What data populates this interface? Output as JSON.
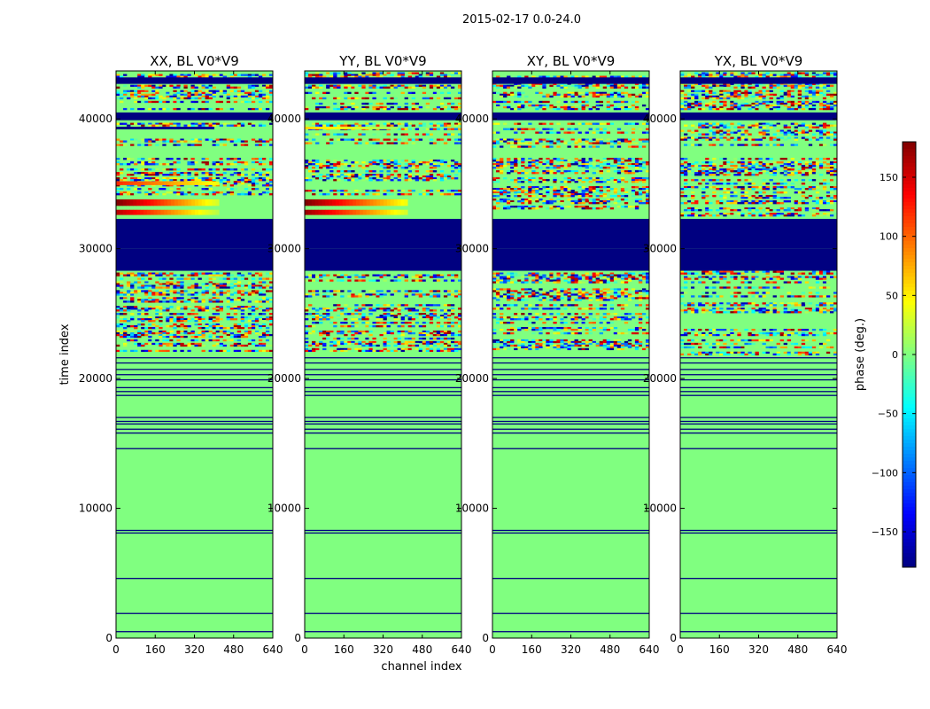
{
  "figure": {
    "suptitle": "2015-02-17 0.0-24.0",
    "xlabel": "channel index",
    "ylabel": "time index",
    "colorbar": {
      "label": "phase (deg.)",
      "range": [
        -180,
        180
      ],
      "ticks": [
        -150,
        -100,
        -50,
        0,
        50,
        100,
        150
      ],
      "tick_labels": [
        "−150",
        "−100",
        "−50",
        "0",
        "50",
        "100",
        "150"
      ],
      "colormap": "jet"
    }
  },
  "chart_data": [
    {
      "type": "heatmap",
      "title": "XX, BL V0*V9",
      "xlim": [
        0,
        640
      ],
      "ylim": [
        0,
        43700
      ],
      "xticks": [
        0,
        160,
        320,
        480,
        640
      ],
      "yticks": [
        0,
        10000,
        20000,
        30000,
        40000
      ],
      "background_phase_deg": 0,
      "blank_bands": [
        {
          "y": [
            30000,
            32300
          ]
        },
        {
          "y": [
            28300,
            30000
          ]
        },
        {
          "y": [
            39900,
            40500
          ]
        },
        {
          "y": [
            42700,
            43200
          ]
        }
      ],
      "noisy_bands": [
        {
          "y": [
            21800,
            28300
          ],
          "level": 0.55
        },
        {
          "y": [
            34000,
            37000
          ],
          "level": 0.6
        },
        {
          "y": [
            37800,
            39700
          ],
          "level": 0.5
        },
        {
          "y": [
            40700,
            43600
          ],
          "level": 0.6
        }
      ],
      "gradient_bands": [
        {
          "y": [
            33300,
            33800
          ],
          "from_deg": 180,
          "to_deg": 30,
          "until_channel": 420
        },
        {
          "y": [
            32600,
            33000
          ],
          "from_deg": 160,
          "to_deg": 20,
          "until_channel": 420
        },
        {
          "y": [
            34900,
            35200
          ],
          "from_deg": 120,
          "to_deg": 40,
          "until_channel": 420
        },
        {
          "y": [
            39200,
            39400
          ],
          "from_deg": -180,
          "to_deg": -170,
          "until_channel": 400
        }
      ],
      "lines": [
        500,
        1900,
        4600,
        8100,
        8300,
        14600,
        15800,
        16100,
        16500,
        16700,
        17000,
        18700,
        19000,
        19300,
        19900,
        20300,
        20700,
        21200,
        21600
      ]
    },
    {
      "type": "heatmap",
      "title": "YY, BL V0*V9",
      "xlim": [
        0,
        640
      ],
      "ylim": [
        0,
        43700
      ],
      "xticks": [
        0,
        160,
        320,
        480,
        640
      ],
      "yticks": [
        0,
        10000,
        20000,
        30000,
        40000
      ],
      "background_phase_deg": 0,
      "blank_bands": [
        {
          "y": [
            30000,
            32300
          ]
        },
        {
          "y": [
            28300,
            30000
          ]
        },
        {
          "y": [
            39900,
            40500
          ]
        },
        {
          "y": [
            42700,
            43200
          ]
        }
      ],
      "noisy_bands": [
        {
          "y": [
            21800,
            28300
          ],
          "level": 0.5
        },
        {
          "y": [
            34000,
            37000
          ],
          "level": 0.55
        },
        {
          "y": [
            37800,
            39700
          ],
          "level": 0.5
        },
        {
          "y": [
            40700,
            43600
          ],
          "level": 0.6
        }
      ],
      "gradient_bands": [
        {
          "y": [
            33300,
            33800
          ],
          "from_deg": 180,
          "to_deg": 40,
          "until_channel": 420
        },
        {
          "y": [
            32600,
            33000
          ],
          "from_deg": 170,
          "to_deg": 30,
          "until_channel": 420
        },
        {
          "y": [
            39200,
            39400
          ],
          "from_deg": 60,
          "to_deg": 10,
          "until_channel": 380
        }
      ],
      "lines": [
        500,
        1900,
        4600,
        8100,
        8300,
        14600,
        15800,
        16100,
        16500,
        16700,
        17000,
        18700,
        19000,
        19300,
        19900,
        20300,
        20700,
        21200,
        21600
      ]
    },
    {
      "type": "heatmap",
      "title": "XY, BL V0*V9",
      "xlim": [
        0,
        640
      ],
      "ylim": [
        0,
        43700
      ],
      "xticks": [
        0,
        160,
        320,
        480,
        640
      ],
      "yticks": [
        0,
        10000,
        20000,
        30000,
        40000
      ],
      "background_phase_deg": 0,
      "blank_bands": [
        {
          "y": [
            30000,
            32300
          ]
        },
        {
          "y": [
            28300,
            30000
          ]
        },
        {
          "y": [
            39900,
            40500
          ]
        },
        {
          "y": [
            42700,
            43200
          ]
        }
      ],
      "noisy_bands": [
        {
          "y": [
            21800,
            28300
          ],
          "level": 0.55
        },
        {
          "y": [
            32500,
            37000
          ],
          "level": 0.65
        },
        {
          "y": [
            37800,
            39700
          ],
          "level": 0.65
        },
        {
          "y": [
            40700,
            43600
          ],
          "level": 0.7
        }
      ],
      "gradient_bands": [],
      "lines": [
        500,
        1900,
        4600,
        8100,
        8300,
        14600,
        15800,
        16100,
        16500,
        16700,
        17000,
        18700,
        19000,
        19300,
        19900,
        20300,
        20700,
        21200,
        21600
      ]
    },
    {
      "type": "heatmap",
      "title": "YX, BL V0*V9",
      "xlim": [
        0,
        640
      ],
      "ylim": [
        0,
        43700
      ],
      "xticks": [
        0,
        160,
        320,
        480,
        640
      ],
      "yticks": [
        0,
        10000,
        20000,
        30000,
        40000
      ],
      "background_phase_deg": 0,
      "blank_bands": [
        {
          "y": [
            30000,
            32300
          ]
        },
        {
          "y": [
            28300,
            30000
          ]
        },
        {
          "y": [
            39900,
            40500
          ]
        },
        {
          "y": [
            42700,
            43200
          ]
        }
      ],
      "noisy_bands": [
        {
          "y": [
            21800,
            28300
          ],
          "level": 0.55
        },
        {
          "y": [
            32500,
            37000
          ],
          "level": 0.65
        },
        {
          "y": [
            37800,
            39700
          ],
          "level": 0.65
        },
        {
          "y": [
            40700,
            43600
          ],
          "level": 0.7
        }
      ],
      "gradient_bands": [],
      "lines": [
        500,
        1900,
        4600,
        8100,
        8300,
        14600,
        15800,
        16100,
        16500,
        16700,
        17000,
        18700,
        19000,
        19300,
        19900,
        20300,
        20700,
        21200,
        21600
      ]
    }
  ]
}
